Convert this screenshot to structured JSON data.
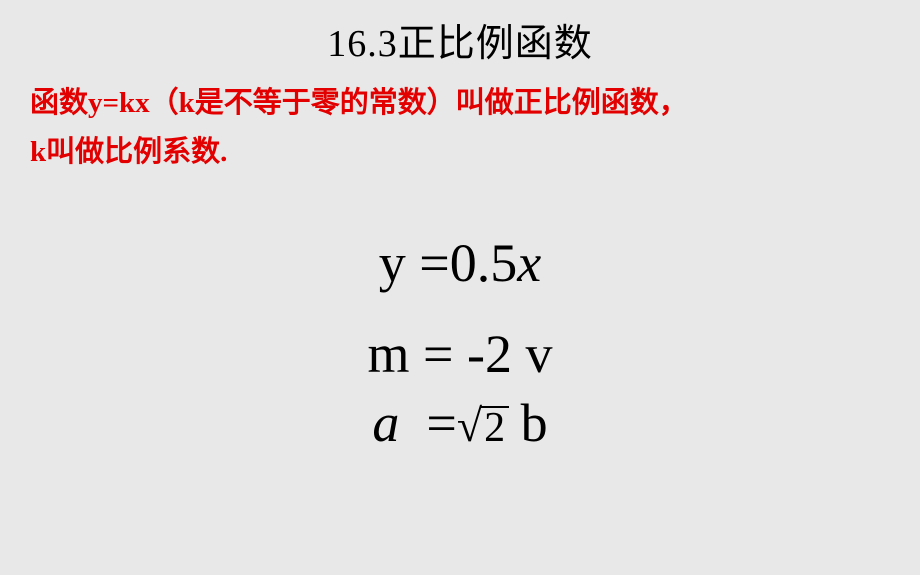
{
  "title": "16.3正比例函数",
  "definition": {
    "line1": "函数y=kx（k是不等于零的常数）叫做正比例函数，",
    "line2": "k叫做比例系数.",
    "text_color": "#e20000",
    "fontsize": 29
  },
  "equations": {
    "eq1": {
      "lhs": "y",
      "op": "=",
      "coef": "0.5",
      "var": "x",
      "fontsize": 54
    },
    "eq2": {
      "lhs": "m",
      "op": "=",
      "coef": "-2",
      "var": "v",
      "fontsize": 54
    },
    "eq3": {
      "lhs": "a",
      "op": "=",
      "sqrt_arg": "2",
      "var": "b",
      "fontsize": 54
    }
  },
  "background_color": "#e8e8e8",
  "text_color": "#000000"
}
